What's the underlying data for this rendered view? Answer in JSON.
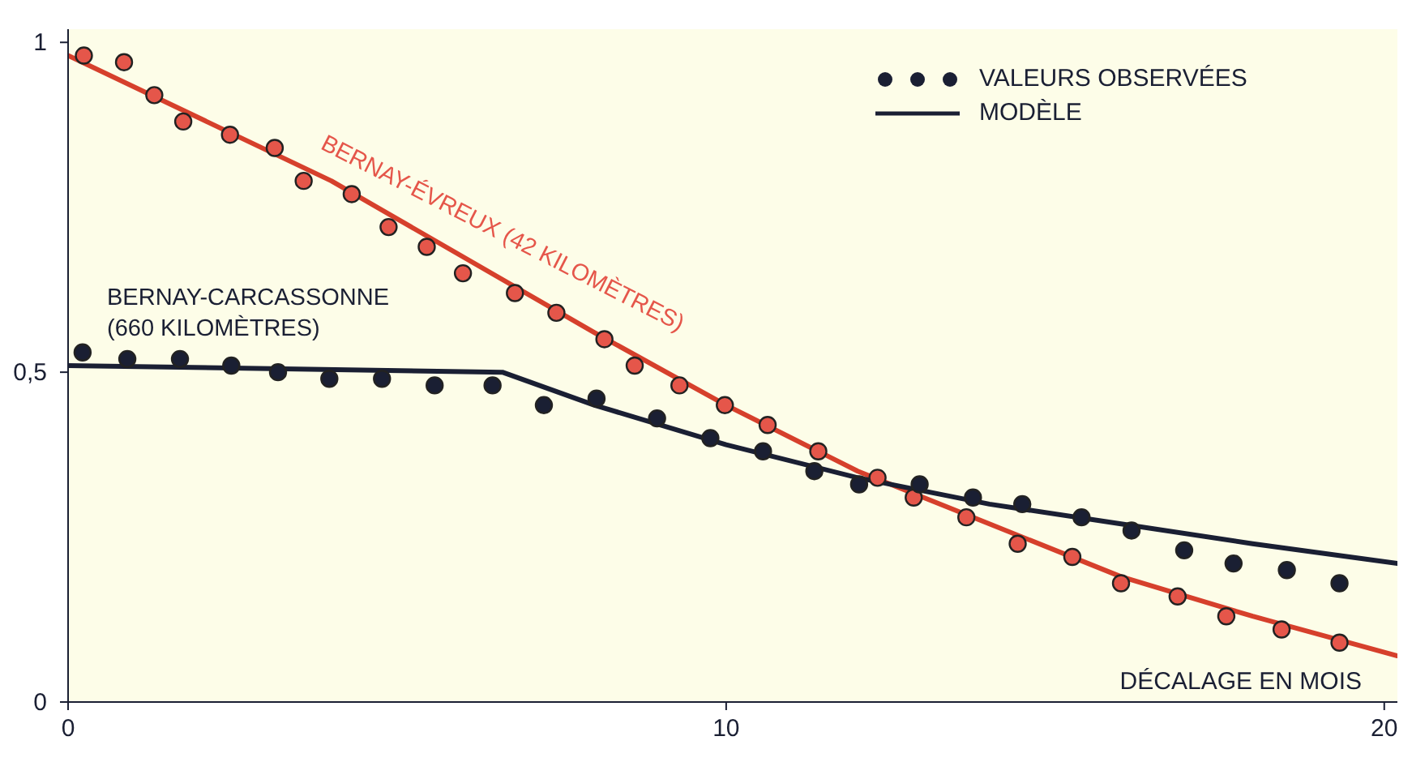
{
  "chart_data": {
    "type": "scatter",
    "xlabel": "DÉCALAGE EN MOIS",
    "xlim": [
      0,
      20.2
    ],
    "ylim": [
      0,
      1.02
    ],
    "xticks": [
      0,
      10,
      20
    ],
    "yticks": [
      0,
      {
        "value": 0.5,
        "label": "0,5"
      },
      1
    ],
    "grid": false,
    "legend": "top right",
    "marker": "circle",
    "series": [
      {
        "color": "#e5564a",
        "x": [
          0.24,
          0.85,
          1.31,
          1.75,
          2.46,
          3.14,
          3.58,
          4.31,
          4.87,
          5.45,
          6.0,
          6.79,
          7.42,
          8.15,
          8.61,
          9.29,
          9.98,
          10.63,
          11.4,
          12.3,
          12.85,
          13.65,
          14.43,
          15.26,
          16.0,
          16.86,
          17.6,
          18.44,
          19.32
        ],
        "values": [
          0.98,
          0.97,
          0.92,
          0.88,
          0.86,
          0.84,
          0.79,
          0.77,
          0.72,
          0.69,
          0.65,
          0.62,
          0.59,
          0.55,
          0.51,
          0.48,
          0.45,
          0.42,
          0.38,
          0.34,
          0.31,
          0.28,
          0.24,
          0.22,
          0.18,
          0.16,
          0.13,
          0.11,
          0.09
        ]
      },
      {
        "type": "line",
        "marker": "none",
        "color": "#d6402c",
        "x": [
          0,
          4,
          8,
          10,
          12,
          14,
          16,
          18,
          20.2
        ],
        "values": [
          0.98,
          0.79,
          0.56,
          0.45,
          0.35,
          0.27,
          0.19,
          0.13,
          0.07
        ]
      },
      {
        "name": "VALEURS OBSERVÉES",
        "color": "#1a1f33",
        "x": [
          0.22,
          0.9,
          1.7,
          2.48,
          3.19,
          3.97,
          4.77,
          5.57,
          6.45,
          7.23,
          8.03,
          8.95,
          9.76,
          10.56,
          11.34,
          12.02,
          12.94,
          13.75,
          14.5,
          15.4,
          16.16,
          16.96,
          17.71,
          18.52,
          19.32
        ],
        "values": [
          0.53,
          0.52,
          0.52,
          0.51,
          0.5,
          0.49,
          0.49,
          0.48,
          0.48,
          0.45,
          0.46,
          0.43,
          0.4,
          0.38,
          0.35,
          0.33,
          0.33,
          0.31,
          0.3,
          0.28,
          0.26,
          0.23,
          0.21,
          0.2,
          0.18
        ]
      },
      {
        "type": "line",
        "marker": "none",
        "name": "MODÈLE",
        "color": "#1a1f33",
        "x": [
          0,
          6.6,
          8,
          10,
          12,
          14,
          16,
          18,
          20.2
        ],
        "values": [
          0.51,
          0.5,
          0.45,
          0.39,
          0.34,
          0.3,
          0.27,
          0.24,
          0.21
        ]
      }
    ],
    "annotations": [
      "BERNAY-ÉVREUX (42 KILOMÈTRES)",
      "BERNAY-CARCASSONNE\n(660 KILOMÈTRES)"
    ]
  }
}
